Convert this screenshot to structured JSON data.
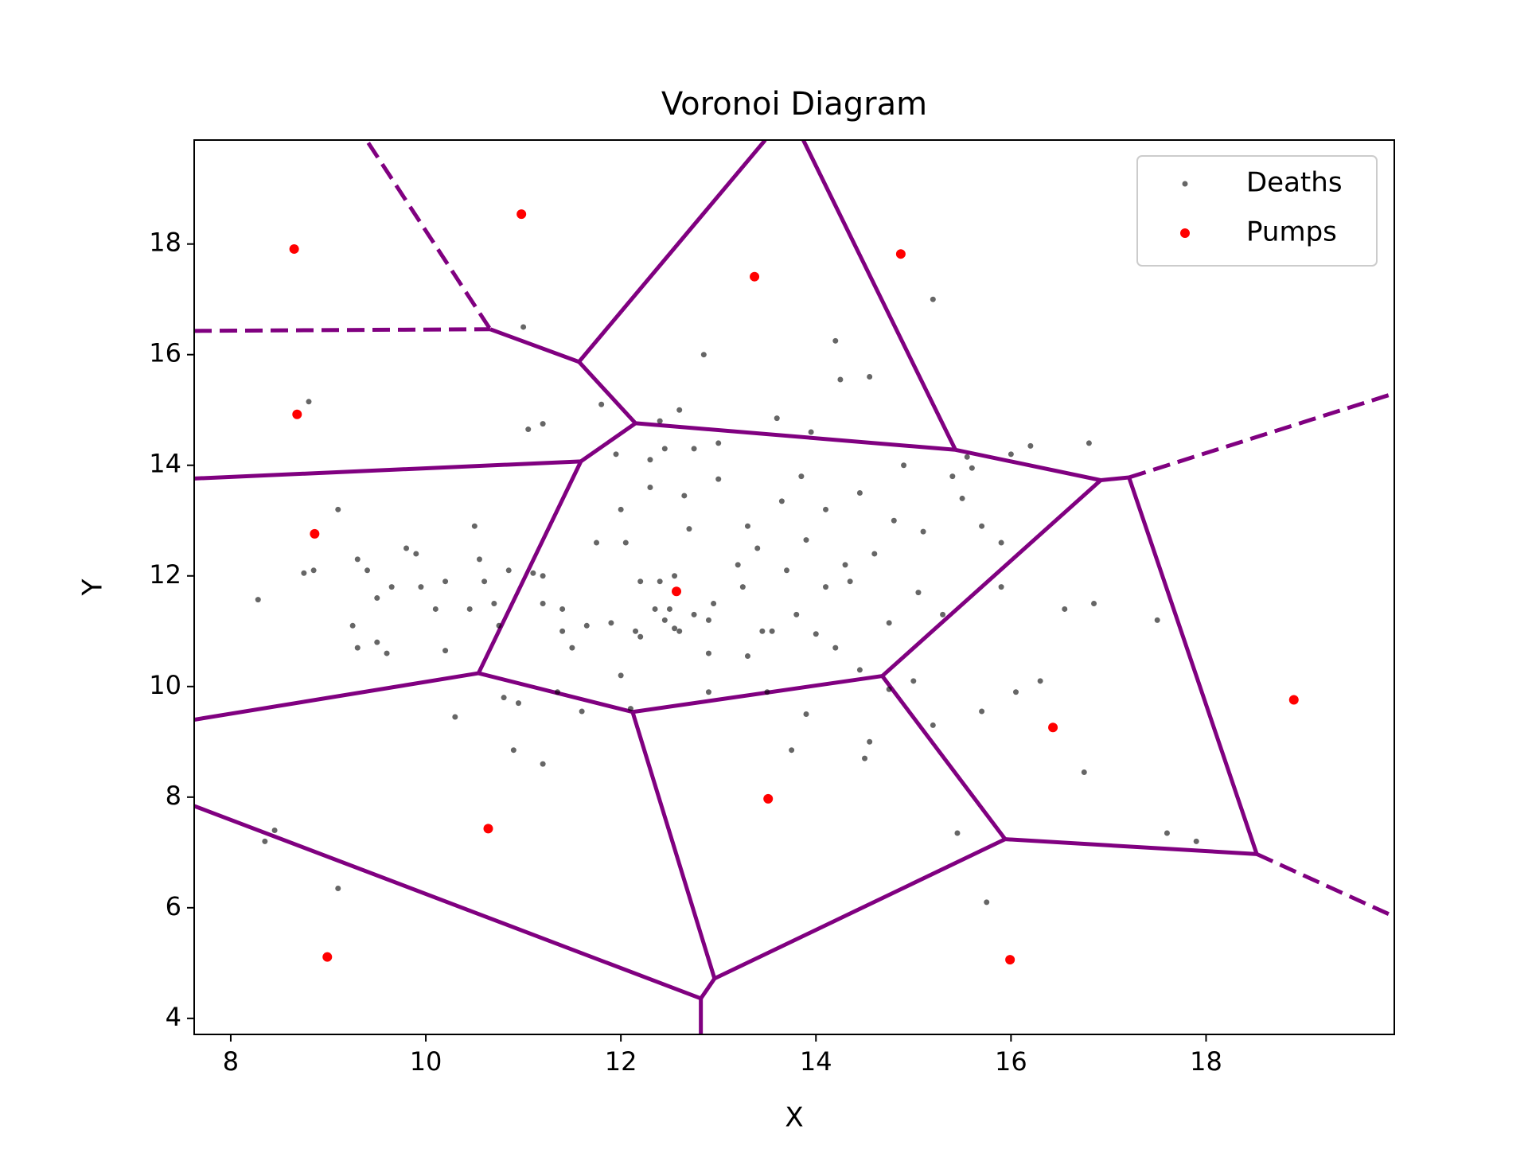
{
  "chart_data": {
    "type": "scatter",
    "title": "Voronoi Diagram",
    "x_label": "X",
    "y_label": "Y",
    "xlim": [
      7.625,
      19.93
    ],
    "ylim": [
      3.71,
      19.88
    ],
    "xticks": [
      8,
      10,
      12,
      14,
      16,
      18
    ],
    "yticks": [
      4,
      6,
      8,
      10,
      12,
      14,
      16,
      18
    ],
    "grid": false,
    "legend": "upper right",
    "series": [
      {
        "name": "Deaths",
        "color": "#000000",
        "x": [
          8.28,
          8.35,
          8.45,
          9.1,
          8.8,
          8.75,
          8.85,
          9.1,
          9.3,
          9.4,
          9.25,
          9.3,
          9.5,
          9.6,
          9.5,
          9.65,
          9.8,
          9.9,
          9.95,
          10.1,
          10.2,
          10.2,
          10.3,
          10.45,
          10.5,
          10.6,
          10.7,
          10.75,
          10.85,
          10.9,
          10.8,
          10.95,
          11.05,
          11.0,
          11.1,
          11.2,
          11.2,
          11.2,
          11.2,
          11.35,
          11.4,
          11.5,
          11.6,
          11.75,
          11.9,
          11.8,
          11.95,
          12.0,
          12.05,
          12.0,
          12.1,
          12.2,
          12.2,
          12.3,
          12.3,
          12.4,
          12.4,
          12.5,
          12.6,
          12.55,
          12.65,
          12.6,
          12.7,
          12.75,
          12.75,
          12.85,
          12.9,
          12.9,
          12.95,
          13.0,
          13.0,
          13.2,
          13.25,
          13.3,
          13.3,
          13.4,
          13.5,
          13.55,
          13.6,
          13.65,
          13.7,
          13.75,
          13.8,
          13.85,
          13.9,
          14.0,
          14.1,
          14.2,
          14.25,
          14.3,
          14.35,
          14.45,
          14.5,
          14.55,
          14.6,
          14.75,
          14.75,
          14.8,
          14.9,
          15.0,
          15.05,
          15.1,
          15.2,
          15.2,
          15.3,
          15.4,
          15.5,
          15.55,
          15.7,
          15.75,
          15.7,
          15.9,
          15.9,
          16.0,
          16.05,
          16.2,
          16.3,
          16.55,
          16.8,
          16.75,
          16.85,
          17.5,
          17.6,
          17.9,
          14.2,
          15.6,
          13.95,
          12.45,
          10.55,
          11.4,
          12.9,
          13.45,
          14.1,
          14.45,
          12.15,
          11.65,
          13.9,
          15.45,
          14.55,
          12.35,
          12.45,
          12.55
        ],
        "y": [
          11.57,
          7.2,
          7.4,
          6.35,
          15.15,
          12.05,
          12.1,
          13.2,
          12.3,
          12.1,
          11.1,
          10.7,
          10.8,
          10.6,
          11.6,
          11.8,
          12.5,
          12.4,
          11.8,
          11.4,
          11.9,
          10.65,
          9.45,
          11.4,
          12.9,
          11.9,
          11.5,
          11.1,
          12.1,
          8.85,
          9.8,
          9.7,
          14.65,
          16.5,
          12.05,
          11.5,
          12.0,
          14.75,
          8.6,
          9.9,
          11.0,
          10.7,
          9.55,
          12.6,
          11.15,
          15.1,
          14.2,
          13.2,
          12.6,
          10.2,
          9.6,
          10.9,
          11.9,
          14.1,
          13.6,
          14.8,
          11.9,
          11.4,
          11.0,
          12.0,
          13.45,
          15.0,
          12.85,
          11.3,
          14.3,
          16.0,
          10.6,
          9.9,
          11.5,
          13.75,
          14.4,
          12.2,
          11.8,
          10.55,
          12.9,
          12.5,
          9.9,
          11.0,
          14.85,
          13.35,
          12.1,
          8.85,
          11.3,
          13.8,
          12.65,
          10.95,
          13.2,
          10.7,
          15.55,
          12.2,
          11.9,
          13.5,
          8.7,
          15.6,
          12.4,
          11.15,
          9.95,
          13.0,
          14.0,
          10.1,
          11.7,
          12.8,
          17.0,
          9.3,
          11.3,
          13.8,
          13.4,
          14.15,
          12.9,
          6.1,
          9.55,
          12.6,
          11.8,
          14.2,
          9.9,
          14.35,
          10.1,
          11.4,
          14.4,
          8.45,
          11.5,
          11.2,
          7.35,
          7.2,
          16.25,
          13.95,
          14.6,
          14.3,
          12.3,
          11.4,
          11.2,
          11.0,
          11.8,
          10.3,
          11.0,
          11.1,
          9.5,
          7.35,
          9.0,
          11.4,
          11.2,
          11.05
        ]
      },
      {
        "name": "Pumps",
        "color": "#ff0000",
        "x": [
          8.65,
          10.98,
          13.37,
          14.87,
          8.68,
          8.86,
          12.57,
          18.9,
          16.43,
          10.64,
          13.51,
          8.99,
          15.99
        ],
        "y": [
          17.91,
          18.54,
          17.41,
          17.82,
          14.92,
          12.76,
          11.72,
          9.76,
          9.26,
          7.43,
          7.97,
          5.11,
          5.06
        ]
      }
    ],
    "edge_color": "#800080",
    "voronoi_edges": [
      {
        "x": [
          10.66,
          11.57
        ],
        "y": [
          16.46,
          15.87
        ],
        "dashed": false
      },
      {
        "x": [
          11.57,
          12.15
        ],
        "y": [
          15.87,
          14.76
        ],
        "dashed": false
      },
      {
        "x": [
          12.15,
          11.59
        ],
        "y": [
          14.76,
          14.07
        ],
        "dashed": false
      },
      {
        "x": [
          11.59,
          10.54
        ],
        "y": [
          14.07,
          10.24
        ],
        "dashed": false
      },
      {
        "x": [
          11.57,
          13.48
        ],
        "y": [
          15.87,
          19.88
        ],
        "dashed": false
      },
      {
        "x": [
          15.43,
          13.87
        ],
        "y": [
          14.28,
          19.88
        ],
        "dashed": false
      },
      {
        "x": [
          12.15,
          15.43
        ],
        "y": [
          14.76,
          14.28
        ],
        "dashed": false
      },
      {
        "x": [
          15.43,
          16.92
        ],
        "y": [
          14.28,
          13.73
        ],
        "dashed": false
      },
      {
        "x": [
          16.92,
          17.21
        ],
        "y": [
          13.73,
          13.78
        ],
        "dashed": false
      },
      {
        "x": [
          16.92,
          14.68
        ],
        "y": [
          13.73,
          10.19
        ],
        "dashed": false
      },
      {
        "x": [
          17.21,
          18.52
        ],
        "y": [
          13.78,
          6.97
        ],
        "dashed": false
      },
      {
        "x": [
          14.68,
          12.12
        ],
        "y": [
          10.19,
          9.54
        ],
        "dashed": false
      },
      {
        "x": [
          10.54,
          12.12
        ],
        "y": [
          10.24,
          9.54
        ],
        "dashed": false
      },
      {
        "x": [
          12.12,
          12.96
        ],
        "y": [
          9.54,
          4.72
        ],
        "dashed": false
      },
      {
        "x": [
          14.68,
          15.94
        ],
        "y": [
          10.19,
          7.24
        ],
        "dashed": false
      },
      {
        "x": [
          15.94,
          18.52
        ],
        "y": [
          7.24,
          6.97
        ],
        "dashed": false
      },
      {
        "x": [
          15.94,
          12.96
        ],
        "y": [
          7.24,
          4.72
        ],
        "dashed": false
      },
      {
        "x": [
          12.96,
          12.82
        ],
        "y": [
          4.72,
          4.36
        ],
        "dashed": false
      },
      {
        "x": [
          12.82,
          12.82
        ],
        "y": [
          4.36,
          3.71
        ],
        "dashed": false
      },
      {
        "x": [
          10.54,
          7.625
        ],
        "y": [
          10.24,
          9.4
        ],
        "dashed": false
      },
      {
        "x": [
          11.59,
          7.625
        ],
        "y": [
          14.07,
          13.76
        ],
        "dashed": false
      },
      {
        "x": [
          7.625,
          12.82
        ],
        "y": [
          7.84,
          4.36
        ],
        "dashed": false
      },
      {
        "x": [
          9.41,
          10.66
        ],
        "y": [
          19.83,
          16.46
        ],
        "dashed": true
      },
      {
        "x": [
          7.625,
          10.66
        ],
        "y": [
          16.43,
          16.46
        ],
        "dashed": true
      },
      {
        "x": [
          17.21,
          19.93
        ],
        "y": [
          13.78,
          15.3
        ],
        "dashed": true
      },
      {
        "x": [
          18.52,
          19.93
        ],
        "y": [
          6.97,
          5.84
        ],
        "dashed": true
      }
    ]
  }
}
